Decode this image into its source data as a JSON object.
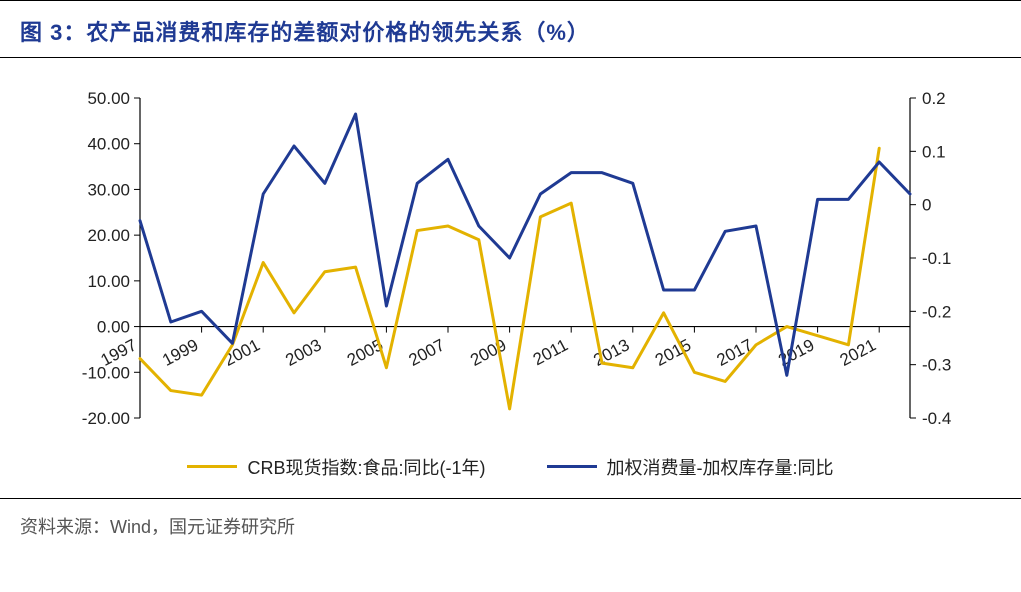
{
  "title": "图 3：农产品消费和库存的差额对价格的领先关系（%）",
  "source": "资料来源：Wind，国元证券研究所",
  "chart": {
    "type": "line-dual-axis",
    "background_color": "#ffffff",
    "left_axis": {
      "min": -20,
      "max": 50,
      "step": 10,
      "ticks": [
        "50.00",
        "40.00",
        "30.00",
        "20.00",
        "10.00",
        "0.00",
        "-10.00",
        "-20.00"
      ],
      "label_fontsize": 17
    },
    "right_axis": {
      "min": -0.4,
      "max": 0.2,
      "step": 0.1,
      "ticks": [
        "0.2",
        "0.1",
        "0",
        "-0.1",
        "-0.2",
        "-0.3",
        "-0.4"
      ],
      "label_fontsize": 17
    },
    "x_categories": [
      "1997",
      "1999",
      "2001",
      "2003",
      "2005",
      "2007",
      "2009",
      "2011",
      "2013",
      "2015",
      "2017",
      "2019",
      "2021"
    ],
    "x_rotation_deg": -28,
    "series": [
      {
        "name": "CRB现货指数:食品:同比(-1年)",
        "axis": "left",
        "color": "#e3b200",
        "line_width": 3,
        "data_by_year": {
          "1997": -7,
          "1998": -14,
          "1999": -15,
          "2000": -4,
          "2001": 14,
          "2002": 3,
          "2003": 12,
          "2004": 13,
          "2005": -9,
          "2006": 21,
          "2007": 22,
          "2008": 19,
          "2009": -18,
          "2010": 24,
          "2011": 27,
          "2012": -8,
          "2013": -9,
          "2014": 3,
          "2015": -10,
          "2016": -12,
          "2017": -4,
          "2018": 0,
          "2019": -2,
          "2020": -4,
          "2021": 39
        }
      },
      {
        "name": "加权消费量-加权库存量:同比",
        "axis": "right",
        "color": "#1f3a93",
        "line_width": 3,
        "data_by_year": {
          "1997": -0.03,
          "1998": -0.22,
          "1999": -0.2,
          "2000": -0.26,
          "2001": 0.02,
          "2002": 0.11,
          "2003": 0.04,
          "2004": 0.17,
          "2005": -0.19,
          "2006": 0.04,
          "2007": 0.085,
          "2008": -0.04,
          "2009": -0.1,
          "2010": 0.02,
          "2011": 0.06,
          "2012": 0.06,
          "2013": 0.04,
          "2014": -0.16,
          "2015": -0.16,
          "2016": -0.05,
          "2017": -0.04,
          "2018": -0.32,
          "2019": 0.01,
          "2020": 0.01,
          "2021": 0.08
        },
        "data_tail": {
          "2022": 0.02
        }
      }
    ],
    "legend": {
      "items": [
        "CRB现货指数:食品:同比(-1年)",
        "加权消费量-加权库存量:同比"
      ],
      "fontsize": 18
    }
  }
}
